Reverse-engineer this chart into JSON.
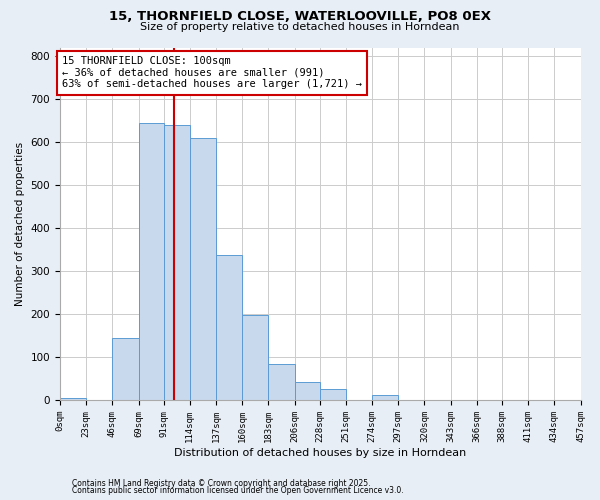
{
  "title1": "15, THORNFIELD CLOSE, WATERLOOVILLE, PO8 0EX",
  "title2": "Size of property relative to detached houses in Horndean",
  "xlabel": "Distribution of detached houses by size in Horndean",
  "ylabel": "Number of detached properties",
  "bar_edges": [
    0,
    23,
    46,
    69,
    91,
    114,
    137,
    160,
    183,
    206,
    228,
    251,
    274,
    297,
    320,
    343,
    366,
    388,
    411,
    434,
    457
  ],
  "bar_heights": [
    5,
    0,
    145,
    645,
    640,
    610,
    338,
    198,
    83,
    42,
    26,
    0,
    11,
    0,
    0,
    0,
    0,
    0,
    0,
    0
  ],
  "bar_color": "#c9d9ed",
  "bar_edgecolor": "#5b9bd5",
  "vline_x": 100,
  "vline_color": "#cc0000",
  "annotation_title": "15 THORNFIELD CLOSE: 100sqm",
  "annotation_line1": "← 36% of detached houses are smaller (991)",
  "annotation_line2": "63% of semi-detached houses are larger (1,721) →",
  "annotation_box_edgecolor": "#cc0000",
  "ylim": [
    0,
    820
  ],
  "yticks": [
    0,
    100,
    200,
    300,
    400,
    500,
    600,
    700,
    800
  ],
  "xtick_labels": [
    "0sqm",
    "23sqm",
    "46sqm",
    "69sqm",
    "91sqm",
    "114sqm",
    "137sqm",
    "160sqm",
    "183sqm",
    "206sqm",
    "228sqm",
    "251sqm",
    "274sqm",
    "297sqm",
    "320sqm",
    "343sqm",
    "366sqm",
    "388sqm",
    "411sqm",
    "434sqm",
    "457sqm"
  ],
  "footer1": "Contains HM Land Registry data © Crown copyright and database right 2025.",
  "footer2": "Contains public sector information licensed under the Open Government Licence v3.0.",
  "background_color": "#e8eef5",
  "plot_bg_color": "#ffffff",
  "grid_color": "#cccccc"
}
